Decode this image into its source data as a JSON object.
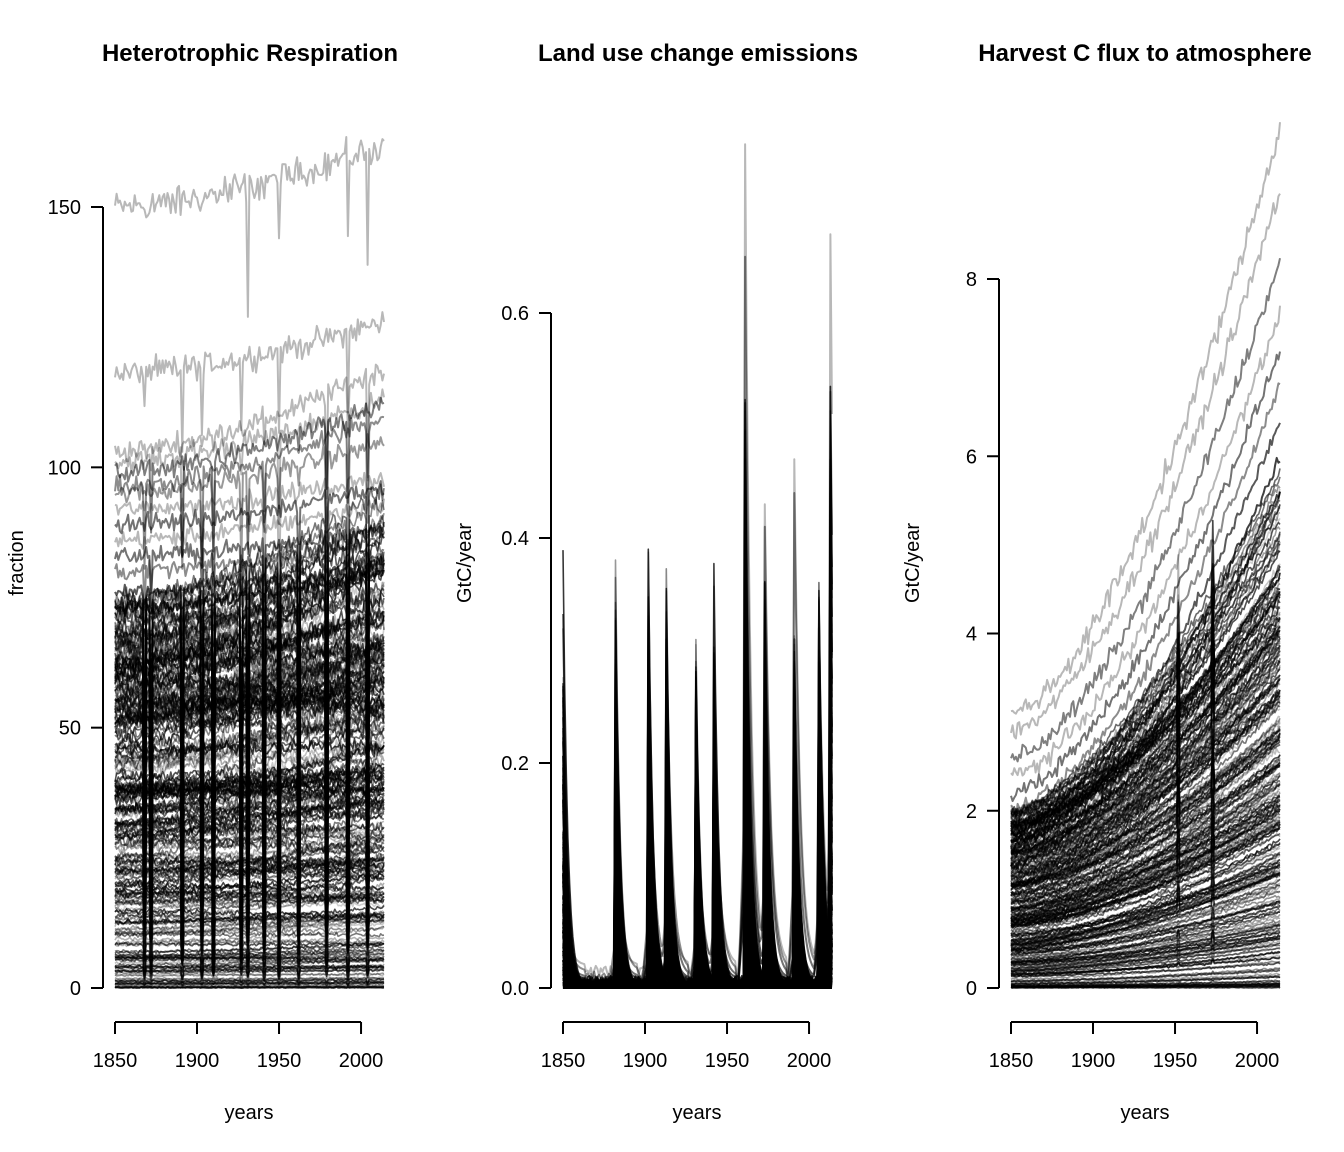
{
  "chart_data": [
    {
      "type": "line",
      "title": "Heterotrophic Respiration",
      "xlabel": "years",
      "ylabel": "fraction",
      "x_range": [
        1850,
        2014
      ],
      "xlim": [
        1850,
        2014
      ],
      "ylim": [
        0,
        150
      ],
      "xticks": [
        1850,
        1900,
        1950,
        2000
      ],
      "yticks": [
        0,
        50,
        100,
        150
      ],
      "grid": false,
      "legend": "none",
      "line_color": "#000000",
      "series_description_levels": [
        {
          "start": 150,
          "end": 162,
          "shade": 0.72
        },
        {
          "start": 118,
          "end": 128,
          "shade": 0.72
        },
        {
          "start": 103,
          "end": 119,
          "shade": 0.72
        },
        {
          "start": 101,
          "end": 113,
          "shade": 0.72
        },
        {
          "start": 99,
          "end": 112,
          "shade": 0.5
        },
        {
          "start": 96,
          "end": 110,
          "shade": 0.55
        },
        {
          "start": 95,
          "end": 105,
          "shade": 0.6
        },
        {
          "start": 92,
          "end": 98,
          "shade": 0.72
        },
        {
          "start": 89,
          "end": 96,
          "shade": 0.45
        },
        {
          "start": 86,
          "end": 93,
          "shade": 0.72
        },
        {
          "start": 83,
          "end": 88,
          "shade": 0.45
        },
        {
          "start": 80,
          "end": 86,
          "shade": 0.55
        },
        {
          "start": 76,
          "end": 82,
          "shade": 0.35
        },
        {
          "start": 73,
          "end": 80,
          "shade": 0.25
        }
      ]
    },
    {
      "type": "line",
      "title": "Land use change emissions",
      "xlabel": "years",
      "ylabel": "GtC/year",
      "x_range": [
        1850,
        2014
      ],
      "xlim": [
        1850,
        2014
      ],
      "ylim": [
        0,
        0.6
      ],
      "xticks": [
        1850,
        1900,
        1950,
        2000
      ],
      "yticks": [
        0.0,
        0.2,
        0.4,
        0.6
      ],
      "ytick_labels": [
        "0.0",
        "0.2",
        "0.4",
        "0.6"
      ],
      "grid": false,
      "legend": "none",
      "line_color": "#000000",
      "spike_years": [
        1850,
        1882,
        1902,
        1913,
        1931,
        1942,
        1961,
        1973,
        1991,
        2006,
        2013
      ],
      "series_peaks": [
        {
          "peaks": [
            0.07,
            0.09,
            0.14,
            0.18,
            0.14,
            0.22,
            0.75,
            0.43,
            0.47,
            0.32,
            0.67
          ],
          "base": 0.02,
          "shade": 0.72
        },
        {
          "peaks": [
            0.08,
            0.18,
            0.27,
            0.31,
            0.19,
            0.24,
            0.65,
            0.41,
            0.44,
            0.29,
            0.53
          ],
          "base": 0.015,
          "shade": 0.55
        },
        {
          "peaks": [
            0.06,
            0.1,
            0.22,
            0.26,
            0.15,
            0.18,
            0.52,
            0.36,
            0.31,
            0.24,
            0.47
          ],
          "base": 0.01,
          "shade": 0.45
        },
        {
          "peaks": [
            0.05,
            0.08,
            0.12,
            0.13,
            0.1,
            0.12,
            0.47,
            0.17,
            0.14,
            0.2,
            0.44
          ],
          "base": 0.008,
          "shade": 0.35
        },
        {
          "peaks": [
            0.05,
            0.06,
            0.1,
            0.12,
            0.08,
            0.09,
            0.36,
            0.14,
            0.12,
            0.17,
            0.4
          ],
          "base": 0.006,
          "shade": 0.25
        }
      ]
    },
    {
      "type": "line",
      "title": "Harvest C flux to atmosphere",
      "xlabel": "years",
      "ylabel": "GtC/year",
      "x_range": [
        1850,
        2014
      ],
      "xlim": [
        1850,
        2014
      ],
      "ylim": [
        0,
        8
      ],
      "xticks": [
        1850,
        1900,
        1950,
        2000
      ],
      "yticks": [
        0,
        2,
        4,
        6,
        8
      ],
      "grid": false,
      "legend": "none",
      "line_color": "#000000",
      "series_description_levels": [
        {
          "start": 3.1,
          "end": 9.7,
          "shade": 0.72
        },
        {
          "start": 2.9,
          "end": 9.0,
          "shade": 0.72
        },
        {
          "start": 2.6,
          "end": 8.2,
          "shade": 0.5
        },
        {
          "start": 2.4,
          "end": 7.6,
          "shade": 0.72
        },
        {
          "start": 2.2,
          "end": 7.2,
          "shade": 0.45
        },
        {
          "start": 2.0,
          "end": 6.8,
          "shade": 0.55
        },
        {
          "start": 1.8,
          "end": 6.4,
          "shade": 0.35
        },
        {
          "start": 1.6,
          "end": 6.0,
          "shade": 0.25
        },
        {
          "start": 1.4,
          "end": 5.6,
          "shade": 0.3
        }
      ]
    }
  ]
}
